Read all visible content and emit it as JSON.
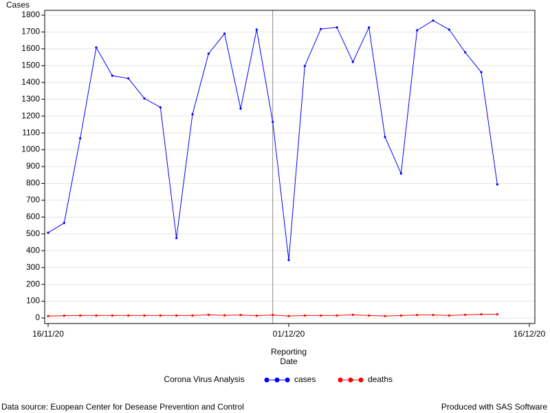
{
  "chart_data": {
    "type": "line",
    "ylabel": "Cases",
    "xlabel_lines": [
      "Reporting",
      "Date"
    ],
    "legend_title": "Corona Virus Analysis",
    "x": [
      "2020-11-16",
      "2020-11-17",
      "2020-11-18",
      "2020-11-19",
      "2020-11-20",
      "2020-11-21",
      "2020-11-22",
      "2020-11-23",
      "2020-11-24",
      "2020-11-25",
      "2020-11-26",
      "2020-11-27",
      "2020-11-28",
      "2020-11-29",
      "2020-11-30",
      "2020-12-01",
      "2020-12-02",
      "2020-12-03",
      "2020-12-04",
      "2020-12-05",
      "2020-12-06",
      "2020-12-07",
      "2020-12-08",
      "2020-12-09",
      "2020-12-10",
      "2020-12-11",
      "2020-12-12",
      "2020-12-13",
      "2020-12-14"
    ],
    "series": [
      {
        "name": "cases",
        "color": "#0000ff",
        "legend_color": "#0000ff",
        "values": [
          507,
          565,
          1068,
          1608,
          1440,
          1424,
          1305,
          1252,
          475,
          1211,
          1571,
          1690,
          1244,
          1714,
          1166,
          344,
          1498,
          1718,
          1727,
          1522,
          1727,
          1076,
          859,
          1710,
          1768,
          1714,
          1579,
          1461,
          794
        ]
      },
      {
        "name": "deaths",
        "color": "#ff0000",
        "legend_color": "#ff0000",
        "values": [
          12,
          14,
          15,
          15,
          15,
          15,
          15,
          15,
          15,
          15,
          19,
          16,
          18,
          14,
          18,
          12,
          15,
          15,
          15,
          19,
          15,
          12,
          15,
          18,
          18,
          15,
          19,
          22,
          22
        ]
      }
    ],
    "reference_x": "2020-11-30",
    "xlim": [
      "2020-11-16",
      "2020-12-16"
    ],
    "xticks": [
      {
        "value": "2020-11-16",
        "label": "16/11/20"
      },
      {
        "value": "2020-12-01",
        "label": "01/12/20"
      },
      {
        "value": "2020-12-16",
        "label": "16/12/20"
      }
    ],
    "ylim": [
      0,
      1800
    ],
    "yticks": [
      0,
      100,
      200,
      300,
      400,
      500,
      600,
      700,
      800,
      900,
      1000,
      1100,
      1200,
      1300,
      1400,
      1500,
      1600,
      1700,
      1800
    ],
    "grid": true,
    "footnote_left": "Data source: Euopean Center for Desease Prevention and Control",
    "footnote_right": "Produced with SAS Software"
  }
}
